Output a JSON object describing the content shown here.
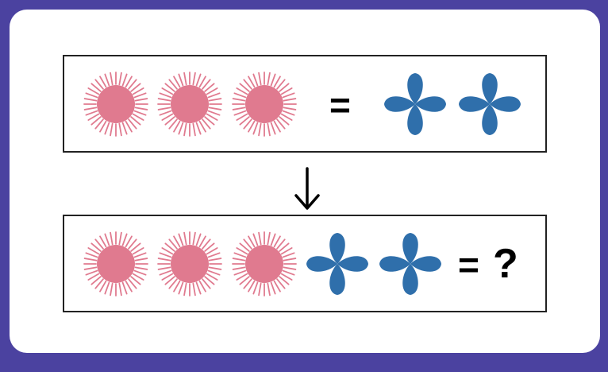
{
  "colors": {
    "background": "#4b42a0",
    "card": "#ffffff",
    "sun": "#e07a8f",
    "flower": "#2f6fab",
    "border": "#222222"
  },
  "icons": {
    "sun": "pink-sun-icon",
    "flower": "blue-four-petal-flower-icon",
    "arrow": "down-arrow-icon"
  },
  "row1": {
    "left": [
      "sun",
      "sun",
      "sun"
    ],
    "operator": "=",
    "right": [
      "flower",
      "flower"
    ]
  },
  "row2": {
    "left": [
      "sun",
      "sun",
      "sun",
      "flower",
      "flower"
    ],
    "operator": "=",
    "answer": "?"
  }
}
